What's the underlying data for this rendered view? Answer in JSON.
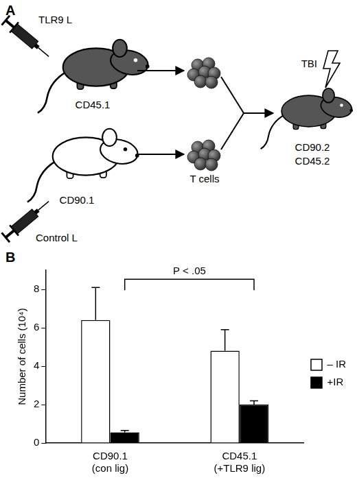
{
  "panel_a": {
    "label": "A",
    "donors": [
      {
        "ligand": "TLR9 L",
        "strain": "CD45.1"
      },
      {
        "ligand": "Control L",
        "strain": "CD90.1"
      }
    ],
    "cells": "T cells",
    "recipient": {
      "strains": [
        "CD90.2",
        "CD45.2"
      ],
      "treatment": "TBI"
    }
  },
  "panel_b": {
    "label": "B"
  },
  "chart_data": {
    "type": "bar",
    "y_label": "Number of cells (10⁴)",
    "categories": [
      [
        "CD90.1",
        "(con lig)"
      ],
      [
        "CD45.1",
        "(+TLR9 lig)"
      ]
    ],
    "series": [
      {
        "name": "– IR",
        "color": "#ffffff",
        "values": [
          6.4,
          4.8
        ],
        "errors": [
          1.7,
          1.1
        ]
      },
      {
        "name": "+IR",
        "color": "#000000",
        "values": [
          0.55,
          2.0
        ],
        "errors": [
          0.1,
          0.2
        ]
      }
    ],
    "ylim": [
      0,
      9
    ],
    "yticks": [
      0,
      2,
      4,
      6,
      8
    ],
    "grid": false,
    "legend": "right",
    "annotations": [
      {
        "text": "P < .05",
        "series": "+IR"
      }
    ]
  }
}
